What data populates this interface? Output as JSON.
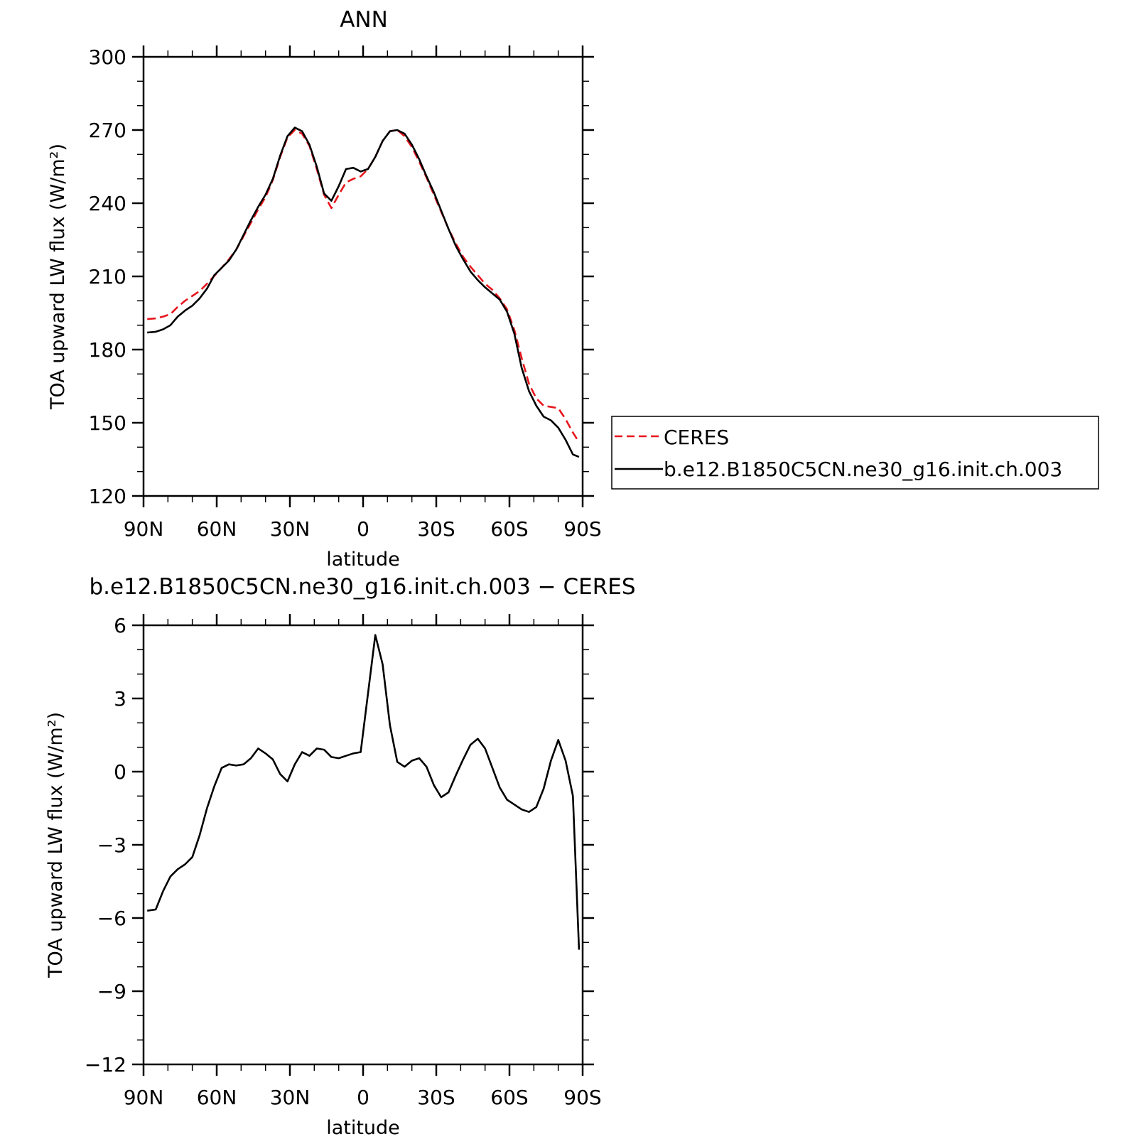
{
  "chart_data": [
    {
      "type": "line",
      "title": "ANN",
      "xlabel": "latitude",
      "ylabel": "TOA upward LW flux (W/m²)",
      "xlim": [
        90,
        -90
      ],
      "ylim": [
        120,
        300
      ],
      "x_ticks": [
        90,
        60,
        30,
        0,
        -30,
        -60,
        -90
      ],
      "x_tick_labels": [
        "90N",
        "60N",
        "30N",
        "0",
        "30S",
        "60S",
        "90S"
      ],
      "y_ticks": [
        120,
        150,
        180,
        210,
        240,
        270,
        300
      ],
      "y_tick_labels": [
        "120",
        "150",
        "180",
        "210",
        "240",
        "270",
        "300"
      ],
      "legend": {
        "placement": "right"
      },
      "series": [
        {
          "name": "CERES",
          "color": "#e8161d",
          "style": "dashed",
          "x": [
            88.5,
            85,
            82,
            79,
            76,
            73,
            70,
            67,
            64,
            61,
            58,
            55,
            52,
            49,
            46,
            43,
            40,
            37,
            34,
            31,
            28,
            25,
            22,
            19,
            16,
            13,
            10,
            7,
            4,
            1,
            -2,
            -5,
            -8,
            -11,
            -14,
            -17,
            -20,
            -23,
            -26,
            -29,
            -32,
            -35,
            -38,
            -41,
            -44,
            -47,
            -50,
            -53,
            -56,
            -59,
            -62,
            -65,
            -68,
            -71,
            -74,
            -77,
            -80,
            -83,
            -86,
            -88.5
          ],
          "values": [
            192.5,
            192.8,
            193.5,
            194.5,
            197.5,
            200,
            202,
            204,
            207,
            210.2,
            213.5,
            217,
            221,
            226.5,
            232,
            237.5,
            242.5,
            249.5,
            259,
            267,
            270,
            268.5,
            263.5,
            254,
            243.5,
            238,
            243.5,
            248.5,
            250,
            251,
            254,
            259,
            265.5,
            269.5,
            270,
            267.5,
            263,
            257,
            250.5,
            243.5,
            236.5,
            229.5,
            223.5,
            218,
            214,
            210.5,
            207,
            204.5,
            201,
            196.5,
            188,
            176.5,
            166,
            160,
            157,
            156.5,
            156,
            151.5,
            146,
            142
          ]
        },
        {
          "name": "b.e12.B1850C5CN.ne30_g16.init.ch.003",
          "color": "#000000",
          "style": "solid",
          "x": [
            88.5,
            85,
            82,
            79,
            76,
            73,
            70,
            67,
            64,
            61,
            58,
            55,
            52,
            49,
            46,
            43,
            40,
            37,
            34,
            31,
            28,
            25,
            22,
            19,
            16,
            13,
            10,
            7,
            4,
            1,
            -2,
            -5,
            -8,
            -11,
            -14,
            -17,
            -20,
            -23,
            -26,
            -29,
            -32,
            -35,
            -38,
            -41,
            -44,
            -47,
            -50,
            -53,
            -56,
            -59,
            -62,
            -65,
            -68,
            -71,
            -74,
            -77,
            -80,
            -83,
            -86,
            -88.5
          ],
          "values": [
            187,
            187.3,
            188.3,
            190,
            193.5,
            196,
            198,
            201,
            205,
            210.5,
            213.5,
            216.5,
            221,
            227,
            233,
            238.5,
            243.5,
            250,
            259.5,
            267.5,
            271,
            269.5,
            264,
            255,
            244,
            241,
            247,
            254,
            254.5,
            253,
            254,
            259,
            265.5,
            269.5,
            270,
            268.5,
            264,
            258,
            251,
            244.5,
            237,
            229.5,
            222.5,
            217,
            212,
            208.5,
            205.5,
            203,
            200.5,
            195.5,
            186.5,
            172.5,
            163,
            157,
            152.5,
            151,
            148,
            143,
            137,
            136
          ]
        }
      ]
    },
    {
      "type": "line",
      "title": "b.e12.B1850C5CN.ne30_g16.init.ch.003 − CERES",
      "xlabel": "latitude",
      "ylabel": "TOA upward LW flux (W/m²)",
      "xlim": [
        90,
        -90
      ],
      "ylim": [
        -12,
        6
      ],
      "x_ticks": [
        90,
        60,
        30,
        0,
        -30,
        -60,
        -90
      ],
      "x_tick_labels": [
        "90N",
        "60N",
        "30N",
        "0",
        "30S",
        "60S",
        "90S"
      ],
      "y_ticks": [
        -12,
        -9,
        -6,
        -3,
        0,
        3,
        6
      ],
      "y_tick_labels": [
        "−12",
        "−9",
        "−6",
        "−3",
        "0",
        "3",
        "6"
      ],
      "series": [
        {
          "color": "#000000",
          "style": "solid",
          "x": [
            88.5,
            85,
            82,
            79,
            76,
            73,
            70,
            67,
            64,
            61,
            58,
            55,
            52,
            49,
            46,
            43,
            40,
            37,
            34,
            31,
            28,
            25,
            22,
            19,
            16,
            13,
            10,
            7,
            4,
            1,
            -2,
            -5,
            -8,
            -11,
            -14,
            -17,
            -20,
            -23,
            -26,
            -29,
            -32,
            -35,
            -38,
            -41,
            -44,
            -47,
            -50,
            -53,
            -56,
            -59,
            -62,
            -65,
            -68,
            -71,
            -74,
            -77,
            -80,
            -83,
            -86,
            -88.5
          ],
          "values": [
            -5.7,
            -5.65,
            -4.9,
            -4.3,
            -4.0,
            -3.8,
            -3.5,
            -2.6,
            -1.5,
            -0.6,
            0.15,
            0.3,
            0.25,
            0.3,
            0.55,
            0.95,
            0.75,
            0.5,
            -0.1,
            -0.4,
            0.3,
            0.8,
            0.65,
            0.95,
            0.9,
            0.6,
            0.55,
            0.65,
            0.75,
            0.8,
            3.2,
            5.6,
            4.4,
            1.9,
            0.4,
            0.2,
            0.45,
            0.55,
            0.2,
            -0.55,
            -1.05,
            -0.85,
            -0.15,
            0.5,
            1.1,
            1.35,
            0.95,
            0.15,
            -0.65,
            -1.15,
            -1.35,
            -1.55,
            -1.65,
            -1.45,
            -0.7,
            0.45,
            1.3,
            0.45,
            -1.0,
            -7.3
          ]
        }
      ]
    }
  ]
}
